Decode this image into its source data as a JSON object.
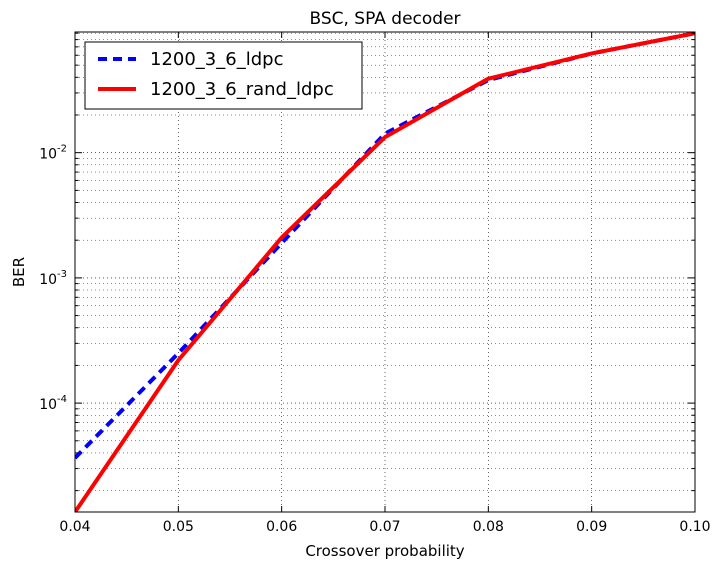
{
  "chart_data": {
    "type": "line",
    "title": "BSC, SPA decoder",
    "xlabel": "Crossover probability",
    "ylabel": "BER",
    "xlim": [
      0.04,
      0.1
    ],
    "ylim": [
      1.35e-05,
      0.092
    ],
    "yscale": "log",
    "grid": true,
    "legend_position": "upper-left",
    "x_ticks": [
      "0.04",
      "0.05",
      "0.06",
      "0.07",
      "0.08",
      "0.09",
      "0.10"
    ],
    "y_ticks": [
      {
        "value": 0.0001,
        "base": "10",
        "exp": "-4"
      },
      {
        "value": 0.001,
        "base": "10",
        "exp": "-3"
      },
      {
        "value": 0.01,
        "base": "10",
        "exp": "-2"
      }
    ],
    "series": [
      {
        "name": "1200_3_6_ldpc",
        "color": "#0000ff",
        "style": "dashed",
        "x": [
          0.04,
          0.05,
          0.06,
          0.07,
          0.08,
          0.09,
          0.1
        ],
        "y": [
          3.65e-05,
          0.00025,
          0.0019,
          0.0142,
          0.038,
          0.062,
          0.09
        ]
      },
      {
        "name": "1200_3_6_rand_ldpc",
        "color": "#ff0000",
        "style": "solid",
        "x": [
          0.04,
          0.05,
          0.06,
          0.07,
          0.08,
          0.09,
          0.1
        ],
        "y": [
          1.35e-05,
          0.00022,
          0.0021,
          0.0133,
          0.039,
          0.062,
          0.09
        ]
      }
    ]
  }
}
